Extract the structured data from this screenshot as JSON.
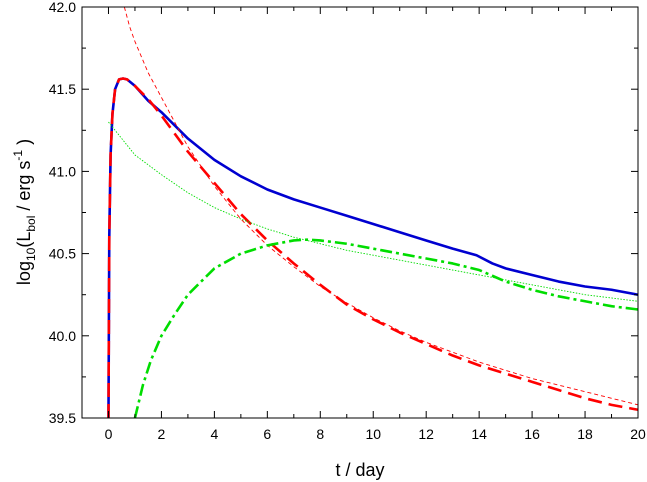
{
  "chart_data": {
    "type": "line",
    "xlabel": "t / day",
    "ylabel": {
      "prefix": "log",
      "prefix_sub": "10",
      "paren_open": "(L",
      "var_sub": "bol",
      "units": " / erg s",
      "units_sup": "-1",
      "close": " )"
    },
    "xlim": [
      -1,
      20
    ],
    "ylim": [
      39.5,
      42.0
    ],
    "xticks": [
      0,
      2,
      4,
      6,
      8,
      10,
      12,
      14,
      16,
      18,
      20
    ],
    "xtick_labels": [
      "0",
      "2",
      "4",
      "6",
      "8",
      "10",
      "12",
      "14",
      "16",
      "18",
      "20"
    ],
    "yticks": [
      39.5,
      40.0,
      40.5,
      41.0,
      41.5,
      42.0
    ],
    "ytick_labels": [
      "39.5",
      "40.0",
      "40.5",
      "41.0",
      "41.5",
      "42.0"
    ],
    "series": [
      {
        "key": "blue-solid",
        "color": "#0000d0",
        "style": "solid",
        "weight": "thick",
        "x": [
          0.0,
          0.03,
          0.08,
          0.15,
          0.25,
          0.4,
          0.55,
          0.7,
          1.0,
          1.5,
          2.0,
          3.0,
          4.0,
          5.0,
          6.0,
          7.0,
          8.0,
          9.0,
          10.0,
          11.0,
          12.0,
          13.0,
          13.9,
          14.5,
          15.0,
          16.0,
          17.0,
          18.0,
          19.0,
          20.0
        ],
        "y": [
          39.5,
          40.6,
          41.1,
          41.35,
          41.5,
          41.56,
          41.565,
          41.56,
          41.52,
          41.43,
          41.36,
          41.2,
          41.07,
          40.97,
          40.89,
          40.83,
          40.78,
          40.73,
          40.68,
          40.63,
          40.58,
          40.53,
          40.49,
          40.44,
          40.41,
          40.37,
          40.33,
          40.3,
          40.28,
          40.25
        ]
      },
      {
        "key": "red-dashed",
        "color": "#ff0000",
        "style": "dashed",
        "weight": "thick",
        "x": [
          0.0,
          0.03,
          0.08,
          0.15,
          0.25,
          0.4,
          0.55,
          0.7,
          1.0,
          1.5,
          2.0,
          2.5,
          3.0,
          4.0,
          5.0,
          6.0,
          7.0,
          8.0,
          9.0,
          10.0,
          11.0,
          12.0,
          13.0,
          14.0,
          15.0,
          16.0,
          17.0,
          18.0,
          19.0,
          20.0
        ],
        "y": [
          39.5,
          40.6,
          41.1,
          41.35,
          41.5,
          41.56,
          41.565,
          41.56,
          41.52,
          41.44,
          41.34,
          41.23,
          41.12,
          40.93,
          40.74,
          40.58,
          40.44,
          40.31,
          40.19,
          40.1,
          40.02,
          39.95,
          39.88,
          39.82,
          39.77,
          39.72,
          39.67,
          39.62,
          39.58,
          39.55
        ]
      },
      {
        "key": "red-thin-dashed",
        "color": "#ff0000",
        "style": "short-dash",
        "weight": "thin",
        "x": [
          0.6,
          0.8,
          1.0,
          1.5,
          2.0,
          3.0,
          4.0,
          5.0,
          6.0,
          7.0,
          8.0,
          9.0,
          10.0,
          11.0,
          12.0,
          13.0,
          14.0,
          15.0,
          16.0,
          17.0,
          18.0,
          19.0,
          20.0
        ],
        "y": [
          42.0,
          41.88,
          41.79,
          41.6,
          41.45,
          41.15,
          40.91,
          40.71,
          40.55,
          40.42,
          40.3,
          40.2,
          40.11,
          40.03,
          39.96,
          39.9,
          39.84,
          39.79,
          39.74,
          39.7,
          39.66,
          39.62,
          39.58
        ]
      },
      {
        "key": "green-dashdot",
        "color": "#00dd00",
        "style": "dash-dot",
        "weight": "thick",
        "x": [
          1.0,
          1.3,
          1.6,
          2.0,
          2.5,
          3.0,
          4.0,
          5.0,
          6.0,
          7.0,
          7.5,
          8.0,
          9.0,
          10.0,
          11.0,
          12.0,
          13.0,
          14.0,
          15.0,
          16.0,
          17.0,
          18.0,
          19.0,
          20.0
        ],
        "y": [
          39.5,
          39.7,
          39.85,
          40.0,
          40.13,
          40.25,
          40.41,
          40.5,
          40.55,
          40.58,
          40.585,
          40.58,
          40.56,
          40.53,
          40.5,
          40.47,
          40.44,
          40.4,
          40.33,
          40.28,
          40.24,
          40.21,
          40.18,
          40.16
        ]
      },
      {
        "key": "green-thin-dotted",
        "color": "#00dd00",
        "style": "dotted",
        "weight": "thin",
        "x": [
          0.0,
          0.5,
          1.0,
          2.0,
          3.0,
          4.0,
          5.0,
          6.0,
          7.0,
          8.0,
          9.0,
          10.0,
          11.0,
          12.0,
          13.0,
          14.0,
          15.0,
          16.0,
          17.0,
          18.0,
          19.0,
          20.0
        ],
        "y": [
          41.3,
          41.2,
          41.1,
          40.98,
          40.87,
          40.78,
          40.71,
          40.65,
          40.6,
          40.56,
          40.52,
          40.49,
          40.46,
          40.43,
          40.4,
          40.37,
          40.34,
          40.31,
          40.28,
          40.25,
          40.23,
          40.21
        ]
      }
    ]
  }
}
